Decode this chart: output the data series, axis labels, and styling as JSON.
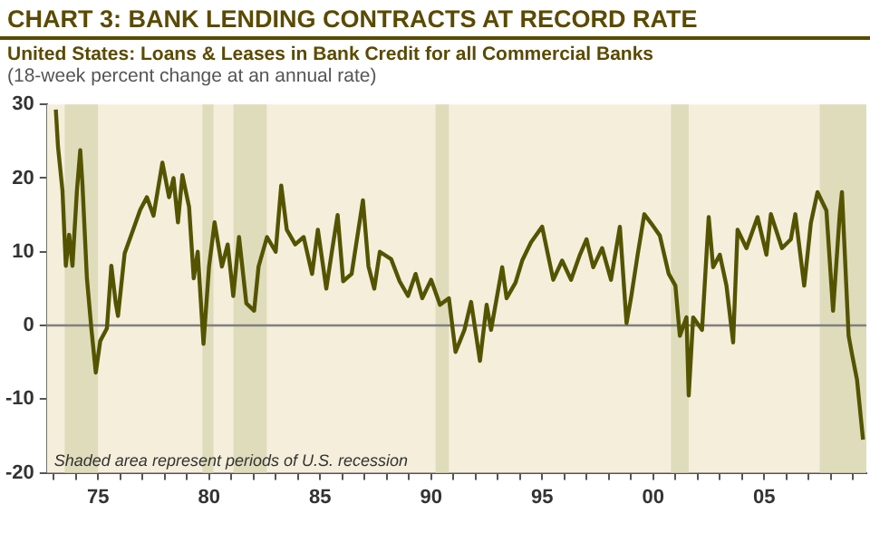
{
  "chart_data": {
    "type": "line",
    "title": "CHART 3: BANK LENDING CONTRACTS AT RECORD RATE",
    "subtitle": "United States: Loans & Leases in Bank Credit for all Commercial Banks",
    "ylabel": "(18-week percent change at an annual rate)",
    "annotations": [
      "Shaded area represent periods of U.S. recession"
    ],
    "x": [
      1973.1,
      1973.2,
      1973.4,
      1973.55,
      1973.7,
      1973.85,
      1974.05,
      1974.2,
      1974.3,
      1974.5,
      1974.7,
      1974.9,
      1975.1,
      1975.4,
      1975.6,
      1975.8,
      1975.9,
      1976.2,
      1976.5,
      1976.9,
      1977.2,
      1977.5,
      1977.9,
      1978.2,
      1978.4,
      1978.6,
      1978.8,
      1979.1,
      1979.31,
      1979.49,
      1979.75,
      1980.0,
      1980.25,
      1980.58,
      1980.84,
      1981.09,
      1981.35,
      1981.68,
      1982.03,
      1982.23,
      1982.61,
      1983.0,
      1983.25,
      1983.5,
      1983.88,
      1984.26,
      1984.64,
      1984.9,
      1985.28,
      1985.53,
      1985.79,
      1986.04,
      1986.42,
      1986.93,
      1987.18,
      1987.44,
      1987.69,
      1988.2,
      1988.58,
      1988.96,
      1989.3,
      1989.6,
      1990.0,
      1990.4,
      1990.8,
      1991.1,
      1991.5,
      1991.8,
      1992.2,
      1992.5,
      1992.7,
      1993.2,
      1993.4,
      1993.8,
      1994.1,
      1994.5,
      1995.0,
      1995.2,
      1995.5,
      1995.9,
      1996.3,
      1996.7,
      1997.0,
      1997.3,
      1997.7,
      1998.1,
      1998.5,
      1998.8,
      1999.0,
      1999.3,
      1999.6,
      1999.9,
      2000.3,
      2000.7,
      2001.0,
      2001.2,
      2001.5,
      2001.6,
      2001.8,
      2002.2,
      2002.5,
      2002.7,
      2003.0,
      2003.3,
      2003.6,
      2003.8,
      2004.2,
      2004.7,
      2005.1,
      2005.3,
      2005.8,
      2006.2,
      2006.4,
      2006.8,
      2007.1,
      2007.4,
      2007.8,
      2008.1,
      2008.4,
      2008.5,
      2008.8,
      2008.96,
      2009.18,
      2009.45
    ],
    "series": [
      {
        "color": "#545400",
        "values": [
          29.3,
          24.2,
          18.3,
          8.1,
          12.3,
          8.1,
          18.3,
          23.8,
          19.1,
          6.4,
          -0.4,
          -6.4,
          -2.1,
          -0.4,
          8.1,
          3,
          1.3,
          9.8,
          12.3,
          15.7,
          17.4,
          14.9,
          22.1,
          17.4,
          20,
          14,
          20.4,
          16.1,
          6.4,
          10,
          -2.5,
          8,
          14,
          8,
          11,
          4,
          12,
          3,
          2,
          8,
          12,
          10,
          19,
          13,
          11,
          12,
          7,
          13,
          5,
          10,
          15,
          6,
          7,
          17,
          8,
          5,
          10,
          9,
          6,
          4,
          7,
          3.7,
          6.2,
          2.8,
          3.7,
          -3.6,
          -0.6,
          3.2,
          -4.8,
          2.8,
          -0.6,
          7.9,
          3.7,
          5.8,
          8.8,
          11.3,
          13.4,
          10.5,
          6.2,
          8.8,
          6.2,
          9.6,
          11.7,
          7.9,
          10.5,
          6.2,
          13.4,
          0.3,
          3.7,
          9.6,
          15.1,
          13.9,
          12.2,
          7,
          5.4,
          -1.4,
          1.1,
          -9.5,
          1.1,
          -0.6,
          14.7,
          7.9,
          9.6,
          5.4,
          -2.3,
          13,
          10.5,
          14.7,
          9.6,
          15.1,
          10.5,
          11.7,
          15.1,
          5.4,
          13.9,
          18.1,
          15.6,
          2,
          15.1,
          18.1,
          -1.4,
          -4,
          -7.4,
          -15.5
        ]
      }
    ],
    "xlim": [
      1972.7,
      2009.6
    ],
    "xticks": [
      {
        "value": 1973,
        "label": null
      },
      {
        "value": 1974,
        "label": null
      },
      {
        "value": 1975,
        "label": "75"
      },
      {
        "value": 1976,
        "label": null
      },
      {
        "value": 1977,
        "label": null
      },
      {
        "value": 1978,
        "label": null
      },
      {
        "value": 1979,
        "label": null
      },
      {
        "value": 1980,
        "label": "80"
      },
      {
        "value": 1981,
        "label": null
      },
      {
        "value": 1982,
        "label": null
      },
      {
        "value": 1983,
        "label": null
      },
      {
        "value": 1984,
        "label": null
      },
      {
        "value": 1985,
        "label": "85"
      },
      {
        "value": 1986,
        "label": null
      },
      {
        "value": 1987,
        "label": null
      },
      {
        "value": 1988,
        "label": null
      },
      {
        "value": 1989,
        "label": null
      },
      {
        "value": 1990,
        "label": "90"
      },
      {
        "value": 1991,
        "label": null
      },
      {
        "value": 1992,
        "label": null
      },
      {
        "value": 1993,
        "label": null
      },
      {
        "value": 1994,
        "label": null
      },
      {
        "value": 1995,
        "label": "95"
      },
      {
        "value": 1996,
        "label": null
      },
      {
        "value": 1997,
        "label": null
      },
      {
        "value": 1998,
        "label": null
      },
      {
        "value": 1999,
        "label": null
      },
      {
        "value": 2000,
        "label": "00"
      },
      {
        "value": 2001,
        "label": null
      },
      {
        "value": 2002,
        "label": null
      },
      {
        "value": 2003,
        "label": null
      },
      {
        "value": 2004,
        "label": null
      },
      {
        "value": 2005,
        "label": "05"
      },
      {
        "value": 2006,
        "label": null
      },
      {
        "value": 2007,
        "label": null
      },
      {
        "value": 2008,
        "label": null
      },
      {
        "value": 2009,
        "label": null
      }
    ],
    "ylim": [
      -20,
      30
    ],
    "yticks": [
      -20,
      -10,
      0,
      10,
      20,
      30
    ],
    "ref_lines": [
      {
        "axis": "y",
        "value": 0,
        "color": "#808080"
      }
    ],
    "bands": [
      {
        "axis": "x",
        "from": 1973.5,
        "to": 1975.0,
        "color": "#dfdcbc"
      },
      {
        "axis": "x",
        "from": 1979.7,
        "to": 1980.2,
        "color": "#dfdcbc"
      },
      {
        "axis": "x",
        "from": 1981.1,
        "to": 1982.6,
        "color": "#dfdcbc"
      },
      {
        "axis": "x",
        "from": 1990.2,
        "to": 1990.8,
        "color": "#dfdcbc"
      },
      {
        "axis": "x",
        "from": 2000.8,
        "to": 2001.6,
        "color": "#dfdcbc"
      },
      {
        "axis": "x",
        "from": 2007.5,
        "to": 2009.6,
        "color": "#dfdcbc"
      }
    ]
  }
}
